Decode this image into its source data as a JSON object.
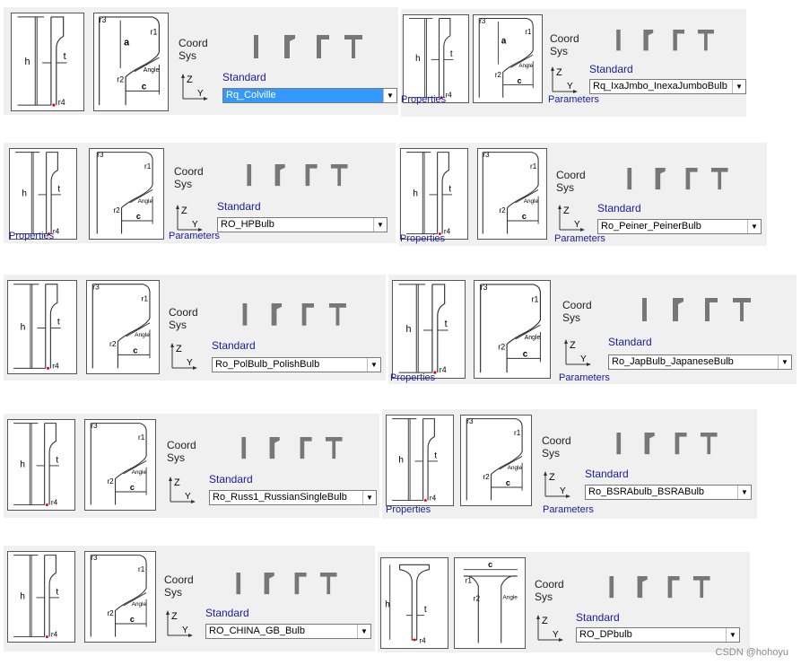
{
  "common": {
    "coord_line1": "Coord",
    "coord_line2": "Sys",
    "standard_label": "Standard",
    "properties_label": "Properties",
    "parameters_label": "Parameters",
    "dim_h": "h",
    "dim_t": "t",
    "dim_r1": "r1",
    "dim_r2": "r2",
    "dim_r3": "r3",
    "dim_r4": "r4",
    "dim_a": "a",
    "dim_c": "c",
    "dim_angle": "Angle",
    "axis_z": "Z",
    "axis_y": "Y"
  },
  "panels": [
    {
      "standard_value": "Rq_Colville",
      "selected": true
    },
    {
      "standard_value": "Rq_IxaJmbo_InexaJumboBulb"
    },
    {
      "standard_value": "RO_HPBulb"
    },
    {
      "standard_value": "Ro_Peiner_PeinerBulb"
    },
    {
      "standard_value": "Ro_PolBulb_PolishBulb"
    },
    {
      "standard_value": "Ro_JapBulb_JapaneseBulb"
    },
    {
      "standard_value": "Ro_Russ1_RussianSingleBulb"
    },
    {
      "standard_value": "Ro_BSRAbulb_BSRABulb"
    },
    {
      "standard_value": "RO_CHINA_GB_Bulb"
    },
    {
      "standard_value": "RO_DPbulb"
    }
  ],
  "watermark": "CSDN @hohoyu",
  "colors": {
    "highlight": "#3399ff",
    "panel_bg": "#f0f0f0",
    "label_blue": "#1a1aa0"
  },
  "icons": [
    "bar-profile-icon",
    "bulb-profile-icon",
    "angle-profile-icon",
    "tee-profile-icon"
  ]
}
